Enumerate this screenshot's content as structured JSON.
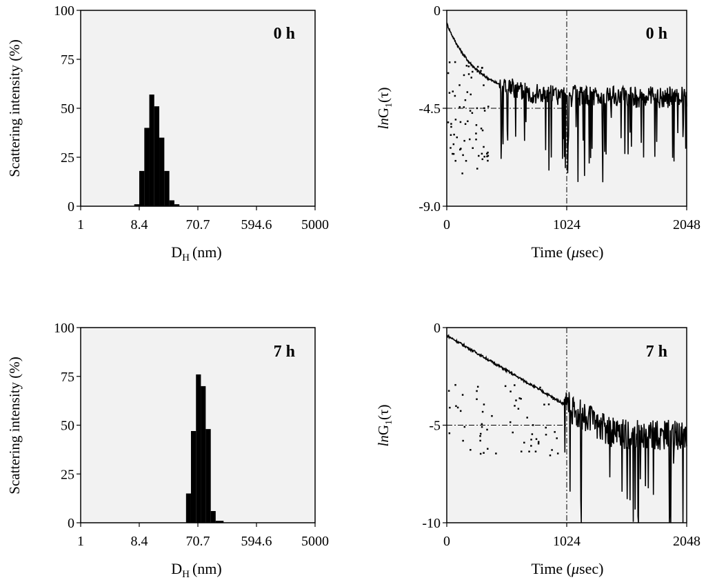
{
  "chart_data": [
    {
      "id": "p1",
      "type": "bar",
      "title": "",
      "annotation": "0 h",
      "xlabel_main": "D",
      "xlabel_sub": "H",
      "xlabel_unit": "(nm)",
      "ylabel": "Scattering intensity (%)",
      "x_scale": "log",
      "xlim": [
        1,
        5000
      ],
      "ylim": [
        0,
        100
      ],
      "x_ticks": [
        {
          "value": 1,
          "label": "1"
        },
        {
          "value": 8.4,
          "label": "8.4"
        },
        {
          "value": 70.7,
          "label": "70.7"
        },
        {
          "value": 594.6,
          "label": "594.6"
        },
        {
          "value": 5000,
          "label": "5000"
        }
      ],
      "y_ticks": [
        {
          "value": 0,
          "label": "0"
        },
        {
          "value": 25,
          "label": "25"
        },
        {
          "value": 50,
          "label": "50"
        },
        {
          "value": 75,
          "label": "75"
        },
        {
          "value": 100,
          "label": "100"
        }
      ],
      "bins": [
        {
          "x_low": 7.0,
          "x_high": 8.4,
          "value": 1
        },
        {
          "x_low": 8.4,
          "x_high": 10.1,
          "value": 18
        },
        {
          "x_low": 10.1,
          "x_high": 12.1,
          "value": 40
        },
        {
          "x_low": 12.1,
          "x_high": 14.5,
          "value": 57
        },
        {
          "x_low": 14.5,
          "x_high": 17.4,
          "value": 51
        },
        {
          "x_low": 17.4,
          "x_high": 20.9,
          "value": 35
        },
        {
          "x_low": 20.9,
          "x_high": 25.1,
          "value": 18
        },
        {
          "x_low": 25.1,
          "x_high": 30.1,
          "value": 3
        },
        {
          "x_low": 30.1,
          "x_high": 36.1,
          "value": 1
        }
      ]
    },
    {
      "id": "p2",
      "type": "scatter",
      "title": "",
      "annotation": "0 h",
      "xlabel_main": "Time (",
      "xlabel_mu": "μ",
      "xlabel_end": "sec)",
      "ylabel_ln": "ln",
      "ylabel_g": "G",
      "ylabel_sub": "1",
      "ylabel_arg": "(τ)",
      "xlim": [
        0,
        2048
      ],
      "ylim": [
        -9.0,
        0
      ],
      "x_ticks": [
        {
          "value": 0,
          "label": "0"
        },
        {
          "value": 1024,
          "label": "1024"
        },
        {
          "value": 2048,
          "label": "2048"
        }
      ],
      "y_ticks": [
        {
          "value": 0,
          "label": "0"
        },
        {
          "value": -4.5,
          "label": "-4.5"
        },
        {
          "value": -9.0,
          "label": "-9.0"
        }
      ],
      "reference_lines": {
        "x": 1024,
        "y": -4.5
      },
      "main_curve": {
        "y_start": -0.6,
        "plateau": -4.0,
        "tau": 260,
        "noise_start_x": 450,
        "noise_amplitude": 0.5
      },
      "scattered_points": {
        "x_range": [
          0,
          350
        ],
        "y_range": [
          -7.6,
          -2.3
        ],
        "count": 70
      }
    },
    {
      "id": "p3",
      "type": "bar",
      "title": "",
      "annotation": "7 h",
      "xlabel_main": "D",
      "xlabel_sub": "H",
      "xlabel_unit": "(nm)",
      "ylabel": "Scattering intensity (%)",
      "x_scale": "log",
      "xlim": [
        1,
        5000
      ],
      "ylim": [
        0,
        100
      ],
      "x_ticks": [
        {
          "value": 1,
          "label": "1"
        },
        {
          "value": 8.4,
          "label": "8.4"
        },
        {
          "value": 70.7,
          "label": "70.7"
        },
        {
          "value": 594.6,
          "label": "594.6"
        },
        {
          "value": 5000,
          "label": "5000"
        }
      ],
      "y_ticks": [
        {
          "value": 0,
          "label": "0"
        },
        {
          "value": 25,
          "label": "25"
        },
        {
          "value": 50,
          "label": "50"
        },
        {
          "value": 75,
          "label": "75"
        },
        {
          "value": 100,
          "label": "100"
        }
      ],
      "bins": [
        {
          "x_low": 46.0,
          "x_high": 55.0,
          "value": 15
        },
        {
          "x_low": 55.0,
          "x_high": 66.0,
          "value": 47
        },
        {
          "x_low": 66.0,
          "x_high": 79.0,
          "value": 76
        },
        {
          "x_low": 79.0,
          "x_high": 94.0,
          "value": 70
        },
        {
          "x_low": 94.0,
          "x_high": 113.0,
          "value": 48
        },
        {
          "x_low": 113.0,
          "x_high": 135.0,
          "value": 6
        },
        {
          "x_low": 135.0,
          "x_high": 180.0,
          "value": 1
        }
      ]
    },
    {
      "id": "p4",
      "type": "scatter",
      "title": "",
      "annotation": "7 h",
      "xlabel_main": "Time (",
      "xlabel_mu": "μ",
      "xlabel_end": "sec)",
      "ylabel_ln": "ln",
      "ylabel_g": "G",
      "ylabel_sub": "1",
      "ylabel_arg": "(τ)",
      "xlim": [
        0,
        2048
      ],
      "ylim": [
        -10,
        0
      ],
      "x_ticks": [
        {
          "value": 0,
          "label": "0"
        },
        {
          "value": 1024,
          "label": "1024"
        },
        {
          "value": 2048,
          "label": "2048"
        }
      ],
      "y_ticks": [
        {
          "value": 0,
          "label": "0"
        },
        {
          "value": -5,
          "label": "-5"
        },
        {
          "value": -10,
          "label": "-10"
        }
      ],
      "reference_lines": {
        "x": 1024,
        "y": -5
      },
      "main_curve": {
        "y_start": -0.4,
        "slope_per_1024": -3.6,
        "plateau": -5.5,
        "noise_start_x": 1000,
        "noise_amplitude": 0.8
      },
      "scattered_points": {
        "x_range": [
          0,
          950
        ],
        "y_range": [
          -6.6,
          -2.8
        ],
        "count": 60
      }
    }
  ]
}
